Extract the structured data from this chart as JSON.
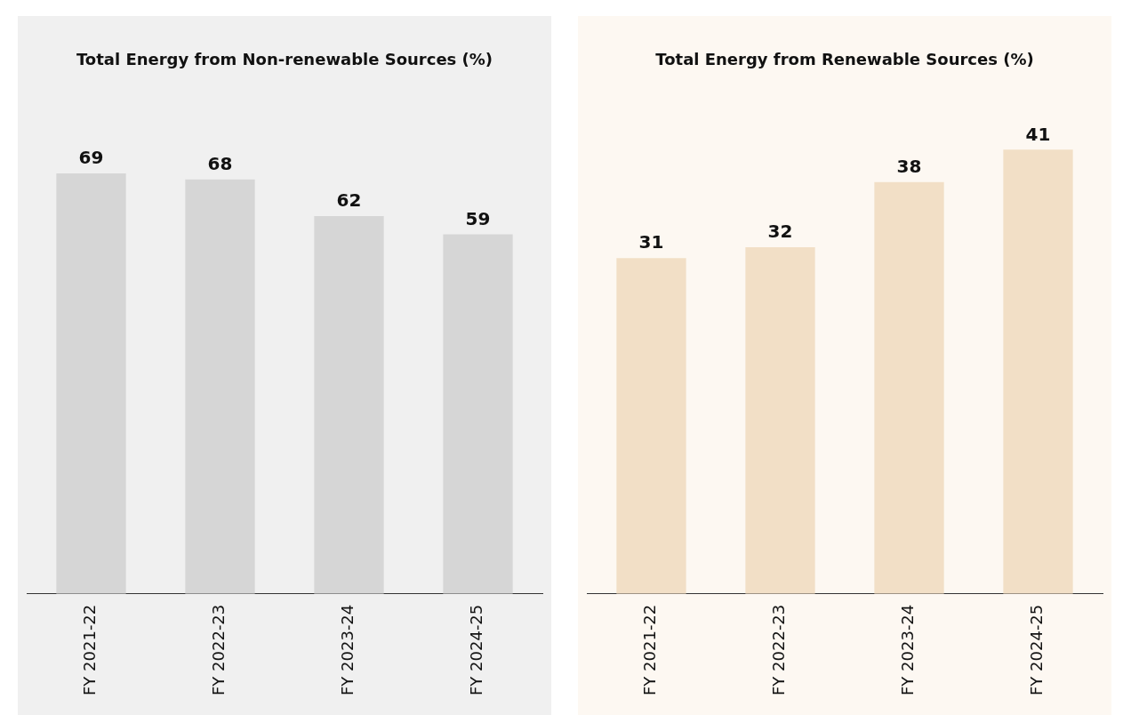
{
  "chart_data": [
    {
      "type": "bar",
      "title": "Total Energy from Non-renewable Sources (%)",
      "categories": [
        "FY 2021-22",
        "FY 2022-23",
        "FY 2023-24",
        "FY 2024-25"
      ],
      "values": [
        69,
        68,
        62,
        59
      ],
      "color": "#d6d6d6",
      "data_labels": true,
      "tick_labels": "x"
    },
    {
      "type": "bar",
      "title": "Total Energy from Renewable Sources (%)",
      "categories": [
        "FY 2021-22",
        "FY 2022-23",
        "FY 2023-24",
        "FY 2024-25"
      ],
      "values": [
        31,
        32,
        38,
        41
      ],
      "color": "#f2dfc6",
      "data_labels": true,
      "tick_labels": "x"
    }
  ]
}
